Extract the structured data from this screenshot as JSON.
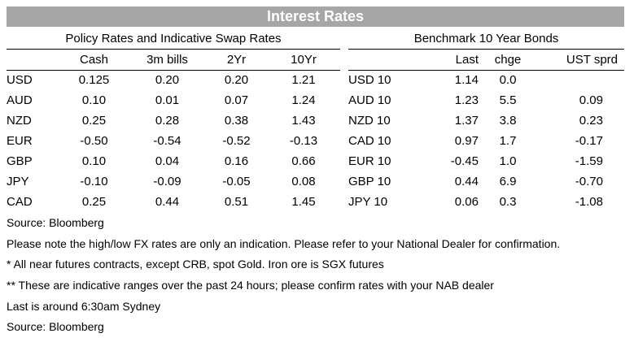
{
  "title": "Interest Rates",
  "policy": {
    "heading": "Policy Rates and Indicative Swap Rates",
    "columns": [
      "",
      "Cash",
      "3m bills",
      "2Yr",
      "10Yr"
    ],
    "rows": [
      [
        "USD",
        "0.125",
        "0.20",
        "0.20",
        "1.21"
      ],
      [
        "AUD",
        "0.10",
        "0.01",
        "0.07",
        "1.24"
      ],
      [
        "NZD",
        "0.25",
        "0.28",
        "0.38",
        "1.43"
      ],
      [
        "EUR",
        "-0.50",
        "-0.54",
        "-0.52",
        "-0.13"
      ],
      [
        "GBP",
        "0.10",
        "0.04",
        "0.16",
        "0.66"
      ],
      [
        "JPY",
        "-0.10",
        "-0.09",
        "-0.05",
        "0.08"
      ],
      [
        "CAD",
        "0.25",
        "0.44",
        "0.51",
        "1.45"
      ]
    ]
  },
  "bonds": {
    "heading": "Benchmark 10 Year Bonds",
    "columns": [
      "",
      "Last",
      "chge",
      "UST sprd"
    ],
    "rows": [
      [
        "USD 10",
        "1.14",
        "0.0",
        ""
      ],
      [
        "AUD 10",
        "1.23",
        "5.5",
        "0.09"
      ],
      [
        "NZD 10",
        "1.37",
        "3.8",
        "0.23"
      ],
      [
        "CAD 10",
        "0.97",
        "1.7",
        "-0.17"
      ],
      [
        "EUR 10",
        "-0.45",
        "1.0",
        "-1.59"
      ],
      [
        "GBP 10",
        "0.44",
        "6.9",
        "-0.70"
      ],
      [
        "JPY 10",
        "0.06",
        "0.3",
        "-1.08"
      ]
    ]
  },
  "notes": [
    "Source: Bloomberg",
    "Please note the high/low FX rates are only an indication. Please refer to your National Dealer for confirmation.",
    "* All near futures contracts, except CRB, spot Gold.  Iron ore is SGX futures",
    "** These are indicative ranges over the past 24 hours; please confirm rates with your NAB dealer",
    "Last is around 6:30am Sydney",
    "Source: Bloomberg"
  ]
}
